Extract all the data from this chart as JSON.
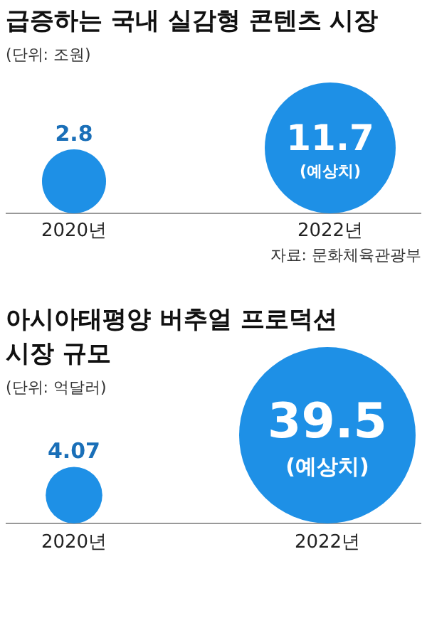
{
  "chart_data": [
    {
      "type": "other",
      "title": "급증하는 국내 실감형 콘텐츠 시장",
      "subtitle": "(단위: 조원)",
      "categories": [
        "2020년",
        "2022년"
      ],
      "values": [
        2.8,
        11.7
      ],
      "color": "#1e90e6",
      "value_labels": [
        "2.8",
        "11.7"
      ],
      "annotations": [
        {
          "text": "(예상치)",
          "x": "2022년"
        },
        "자료: 문화체육관광부"
      ]
    },
    {
      "type": "other",
      "title": "아시아태평양 버추얼 프로덕션 시장 규모",
      "subtitle": "(단위: 억달러)",
      "categories": [
        "2020년",
        "2022년"
      ],
      "values": [
        4.07,
        39.5
      ],
      "color": "#1e90e6",
      "value_labels": [
        "4.07",
        "39.5"
      ],
      "annotations": [
        {
          "text": "(예상치)",
          "x": "2022년"
        }
      ]
    }
  ]
}
